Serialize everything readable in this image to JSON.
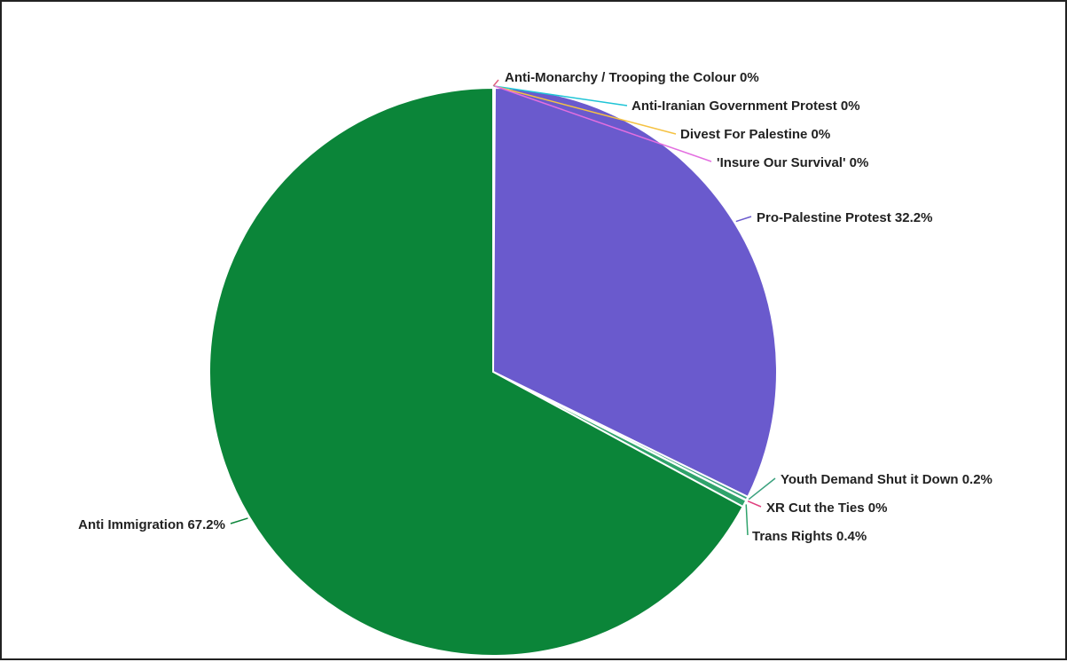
{
  "chart_data": {
    "type": "pie",
    "title": "",
    "start_angle_deg": 0,
    "direction": "clockwise",
    "legend": "none",
    "slices": [
      {
        "label": "Anti-Monarchy / Trooping the Colour",
        "value": 0.02,
        "display": "0%",
        "color": "#e0607e"
      },
      {
        "label": "Anti-Iranian Government Protest",
        "value": 0.04,
        "display": "0%",
        "color": "#1fc4d6"
      },
      {
        "label": "Divest For Palestine",
        "value": 0.02,
        "display": "0%",
        "color": "#f5c242"
      },
      {
        "label": "'Insure Our Survival'",
        "value": 0.02,
        "display": "0%",
        "color": "#e36ee0"
      },
      {
        "label": "Pro-Palestine Protest",
        "value": 32.2,
        "display": "32.2%",
        "color": "#6a5acd"
      },
      {
        "label": "Youth Demand Shut it Down",
        "value": 0.2,
        "display": "0.2%",
        "color": "#3aa17e"
      },
      {
        "label": "XR Cut the Ties",
        "value": 0.02,
        "display": "0%",
        "color": "#e0407e"
      },
      {
        "label": "Trans Rights",
        "value": 0.4,
        "display": "0.4%",
        "color": "#2fa36b"
      },
      {
        "label": "Anti Immigration",
        "value": 67.2,
        "display": "67.2%",
        "color": "#0b8539"
      }
    ]
  }
}
